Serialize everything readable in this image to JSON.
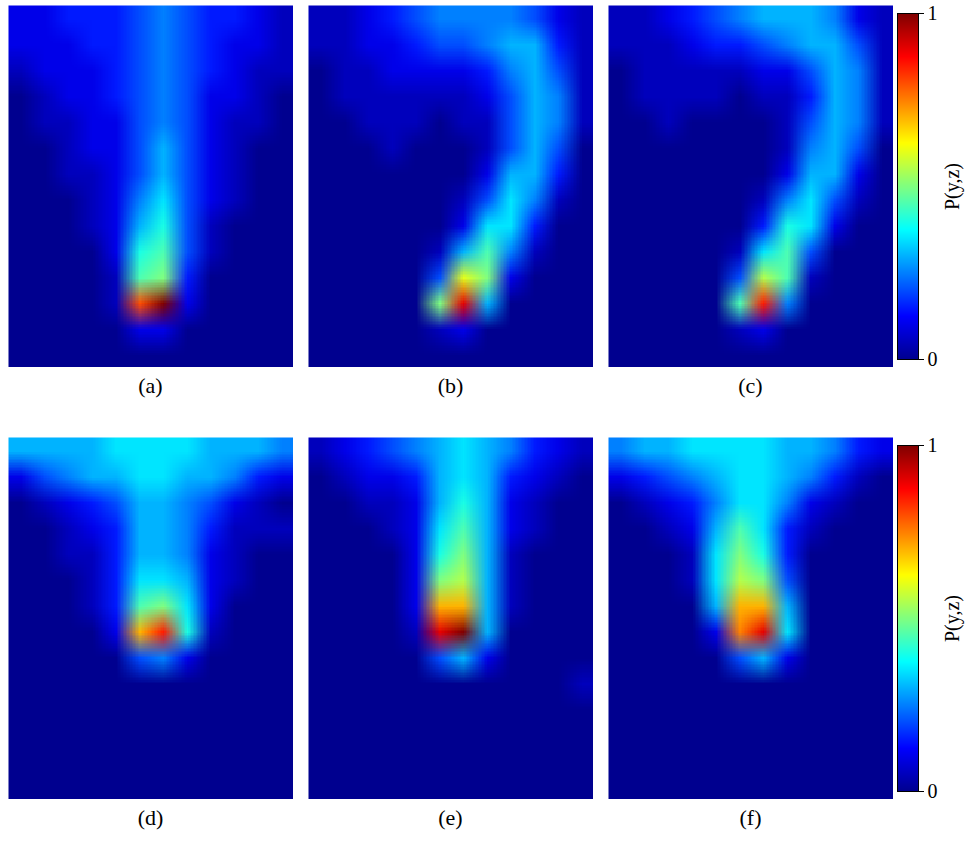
{
  "chart_data": [
    {
      "type": "heatmap",
      "title": "(a)",
      "tick_labels": false,
      "cells": [
        [
          0.1,
          0.1,
          0.15,
          0.15,
          0.15,
          0.2,
          0.25,
          0.2,
          0.15,
          0.15,
          0.1,
          0.05
        ],
        [
          0.1,
          0.1,
          0.1,
          0.15,
          0.15,
          0.2,
          0.25,
          0.2,
          0.15,
          0.1,
          0.1,
          0.05
        ],
        [
          0.05,
          0.1,
          0.1,
          0.1,
          0.15,
          0.2,
          0.25,
          0.2,
          0.15,
          0.1,
          0.05,
          0.05
        ],
        [
          0,
          0.05,
          0.1,
          0.1,
          0.15,
          0.2,
          0.25,
          0.2,
          0.1,
          0.1,
          0.05,
          0
        ],
        [
          0,
          0.05,
          0.05,
          0.1,
          0.1,
          0.2,
          0.25,
          0.2,
          0.1,
          0.05,
          0.05,
          0
        ],
        [
          0,
          0,
          0.05,
          0.1,
          0.1,
          0.2,
          0.3,
          0.2,
          0.1,
          0.05,
          0,
          0
        ],
        [
          0,
          0,
          0.05,
          0.05,
          0.1,
          0.2,
          0.3,
          0.2,
          0.1,
          0.05,
          0,
          0
        ],
        [
          0,
          0,
          0,
          0.05,
          0.1,
          0.25,
          0.35,
          0.2,
          0.1,
          0.05,
          0,
          0
        ],
        [
          0,
          0,
          0,
          0.05,
          0.1,
          0.3,
          0.4,
          0.2,
          0.05,
          0,
          0,
          0
        ],
        [
          0,
          0,
          0,
          0,
          0.1,
          0.4,
          0.45,
          0.2,
          0.05,
          0,
          0,
          0
        ],
        [
          0,
          0,
          0,
          0,
          0.05,
          0.45,
          0.5,
          0.15,
          0,
          0,
          0,
          0
        ],
        [
          0,
          0,
          0,
          0,
          0.05,
          0.8,
          1,
          0.1,
          0,
          0,
          0,
          0
        ],
        [
          0,
          0,
          0,
          0,
          0,
          0.1,
          0.1,
          0,
          0,
          0,
          0,
          0
        ],
        [
          0,
          0,
          0,
          0,
          0,
          0,
          0,
          0,
          0,
          0,
          0,
          0
        ]
      ]
    },
    {
      "type": "heatmap",
      "title": "(b)",
      "tick_labels": false,
      "cells": [
        [
          0.05,
          0.05,
          0.1,
          0.15,
          0.2,
          0.25,
          0.25,
          0.25,
          0.25,
          0.2,
          0.1,
          0.05
        ],
        [
          0.05,
          0.05,
          0.1,
          0.1,
          0.15,
          0.2,
          0.2,
          0.25,
          0.3,
          0.3,
          0.15,
          0.05
        ],
        [
          0,
          0.05,
          0.05,
          0.1,
          0.1,
          0.1,
          0.1,
          0.15,
          0.25,
          0.3,
          0.2,
          0.05
        ],
        [
          0,
          0.05,
          0.05,
          0.05,
          0.05,
          0.05,
          0.05,
          0.1,
          0.2,
          0.3,
          0.25,
          0.05
        ],
        [
          0,
          0,
          0.05,
          0.05,
          0.05,
          0,
          0.05,
          0.05,
          0.2,
          0.3,
          0.25,
          0.05
        ],
        [
          0,
          0,
          0,
          0.05,
          0,
          0,
          0,
          0.05,
          0.2,
          0.3,
          0.2,
          0
        ],
        [
          0,
          0,
          0,
          0,
          0,
          0,
          0,
          0.1,
          0.3,
          0.3,
          0.15,
          0
        ],
        [
          0,
          0,
          0,
          0,
          0,
          0,
          0.05,
          0.2,
          0.35,
          0.25,
          0.05,
          0
        ],
        [
          0,
          0,
          0,
          0,
          0,
          0,
          0.1,
          0.35,
          0.35,
          0.15,
          0,
          0
        ],
        [
          0,
          0,
          0,
          0,
          0,
          0.05,
          0.3,
          0.45,
          0.25,
          0.05,
          0,
          0
        ],
        [
          0,
          0,
          0,
          0,
          0,
          0.2,
          0.6,
          0.5,
          0.1,
          0,
          0,
          0
        ],
        [
          0,
          0,
          0,
          0,
          0,
          0.5,
          0.9,
          0.3,
          0,
          0,
          0,
          0
        ],
        [
          0,
          0,
          0,
          0,
          0,
          0.05,
          0.1,
          0,
          0,
          0,
          0,
          0
        ],
        [
          0,
          0,
          0,
          0,
          0,
          0,
          0,
          0,
          0,
          0,
          0,
          0
        ]
      ]
    },
    {
      "type": "heatmap",
      "title": "(c)",
      "tick_labels": false,
      "cells": [
        [
          0.05,
          0.05,
          0.1,
          0.15,
          0.2,
          0.25,
          0.3,
          0.3,
          0.3,
          0.25,
          0.1,
          0.05
        ],
        [
          0.05,
          0.05,
          0.05,
          0.1,
          0.15,
          0.15,
          0.2,
          0.25,
          0.3,
          0.3,
          0.2,
          0.05
        ],
        [
          0,
          0.05,
          0.05,
          0.05,
          0.05,
          0.05,
          0.1,
          0.1,
          0.2,
          0.3,
          0.25,
          0.05
        ],
        [
          0,
          0.05,
          0.05,
          0.05,
          0.05,
          0,
          0.05,
          0.05,
          0.15,
          0.3,
          0.25,
          0.05
        ],
        [
          0,
          0,
          0.05,
          0,
          0,
          0,
          0,
          0.05,
          0.2,
          0.3,
          0.25,
          0.05
        ],
        [
          0,
          0,
          0,
          0,
          0,
          0,
          0,
          0.05,
          0.25,
          0.3,
          0.2,
          0
        ],
        [
          0,
          0,
          0,
          0,
          0,
          0,
          0,
          0.1,
          0.3,
          0.3,
          0.1,
          0
        ],
        [
          0,
          0,
          0,
          0,
          0,
          0,
          0.05,
          0.25,
          0.35,
          0.2,
          0.05,
          0
        ],
        [
          0,
          0,
          0,
          0,
          0,
          0,
          0.15,
          0.4,
          0.35,
          0.1,
          0,
          0
        ],
        [
          0,
          0,
          0,
          0,
          0,
          0.05,
          0.35,
          0.45,
          0.2,
          0,
          0,
          0
        ],
        [
          0,
          0,
          0,
          0,
          0,
          0.2,
          0.55,
          0.45,
          0.05,
          0,
          0,
          0
        ],
        [
          0,
          0,
          0,
          0,
          0,
          0.45,
          0.85,
          0.25,
          0,
          0,
          0,
          0
        ],
        [
          0,
          0,
          0,
          0,
          0,
          0.05,
          0.1,
          0,
          0,
          0,
          0,
          0
        ],
        [
          0,
          0,
          0,
          0,
          0,
          0,
          0,
          0,
          0,
          0,
          0,
          0
        ]
      ],
      "colorbar": {
        "range": [
          0,
          1
        ],
        "ticks": [
          0,
          1
        ],
        "label": "P(y,z)"
      }
    },
    {
      "type": "heatmap",
      "title": "(d)",
      "tick_labels": false,
      "cells": [
        [
          0.3,
          0.3,
          0.3,
          0.3,
          0.35,
          0.35,
          0.35,
          0.35,
          0.3,
          0.3,
          0.3,
          0.25
        ],
        [
          0.1,
          0.2,
          0.25,
          0.3,
          0.3,
          0.35,
          0.35,
          0.3,
          0.3,
          0.25,
          0.15,
          0.1
        ],
        [
          0,
          0.05,
          0.1,
          0.15,
          0.2,
          0.3,
          0.3,
          0.25,
          0.2,
          0.1,
          0.05,
          0
        ],
        [
          0,
          0,
          0.05,
          0.1,
          0.15,
          0.3,
          0.3,
          0.25,
          0.15,
          0.05,
          0.05,
          0.05
        ],
        [
          0,
          0,
          0.05,
          0.05,
          0.15,
          0.3,
          0.3,
          0.25,
          0.1,
          0.05,
          0,
          0
        ],
        [
          0,
          0,
          0,
          0.05,
          0.15,
          0.35,
          0.35,
          0.3,
          0.1,
          0.05,
          0,
          0
        ],
        [
          0,
          0,
          0,
          0.05,
          0.15,
          0.45,
          0.5,
          0.35,
          0.1,
          0,
          0,
          0
        ],
        [
          0,
          0,
          0,
          0,
          0.1,
          0.7,
          0.85,
          0.4,
          0.05,
          0,
          0,
          0
        ],
        [
          0,
          0,
          0,
          0,
          0,
          0.2,
          0.25,
          0.1,
          0,
          0,
          0,
          0
        ],
        [
          0,
          0,
          0,
          0,
          0,
          0,
          0,
          0,
          0,
          0,
          0,
          0
        ],
        [
          0,
          0,
          0,
          0,
          0,
          0,
          0,
          0,
          0,
          0,
          0,
          0
        ],
        [
          0,
          0,
          0,
          0,
          0,
          0,
          0,
          0,
          0,
          0,
          0,
          0
        ],
        [
          0,
          0,
          0,
          0,
          0,
          0,
          0,
          0,
          0,
          0,
          0,
          0
        ],
        [
          0,
          0,
          0,
          0,
          0,
          0,
          0,
          0,
          0,
          0,
          0,
          0
        ]
      ]
    },
    {
      "type": "heatmap",
      "title": "(e)",
      "tick_labels": false,
      "cells": [
        [
          0.05,
          0.1,
          0.15,
          0.2,
          0.25,
          0.3,
          0.35,
          0.3,
          0.25,
          0.15,
          0.1,
          0.05
        ],
        [
          0,
          0.05,
          0.1,
          0.1,
          0.15,
          0.3,
          0.35,
          0.3,
          0.15,
          0.1,
          0.05,
          0
        ],
        [
          0,
          0,
          0.05,
          0.05,
          0.1,
          0.3,
          0.4,
          0.3,
          0.1,
          0.05,
          0,
          0
        ],
        [
          0,
          0,
          0,
          0.05,
          0.1,
          0.35,
          0.45,
          0.3,
          0.1,
          0.05,
          0,
          0
        ],
        [
          0,
          0,
          0,
          0,
          0.1,
          0.4,
          0.5,
          0.3,
          0.05,
          0,
          0,
          0
        ],
        [
          0,
          0,
          0,
          0,
          0.1,
          0.5,
          0.55,
          0.3,
          0.05,
          0,
          0,
          0
        ],
        [
          0,
          0,
          0,
          0,
          0.1,
          0.7,
          0.7,
          0.3,
          0.05,
          0,
          0,
          0
        ],
        [
          0,
          0,
          0,
          0,
          0.05,
          0.9,
          1,
          0.3,
          0,
          0,
          0,
          0
        ],
        [
          0,
          0,
          0,
          0,
          0,
          0.2,
          0.3,
          0.1,
          0,
          0,
          0,
          0
        ],
        [
          0,
          0,
          0,
          0,
          0,
          0,
          0,
          0,
          0,
          0,
          0,
          0.05
        ],
        [
          0,
          0,
          0,
          0,
          0,
          0,
          0,
          0,
          0,
          0,
          0,
          0
        ],
        [
          0,
          0,
          0,
          0,
          0,
          0,
          0,
          0,
          0,
          0,
          0,
          0
        ],
        [
          0,
          0,
          0,
          0,
          0,
          0,
          0,
          0,
          0,
          0,
          0,
          0
        ],
        [
          0,
          0,
          0,
          0,
          0,
          0,
          0,
          0,
          0,
          0,
          0,
          0
        ]
      ]
    },
    {
      "type": "heatmap",
      "title": "(f)",
      "tick_labels": false,
      "cells": [
        [
          0.25,
          0.3,
          0.3,
          0.35,
          0.35,
          0.35,
          0.35,
          0.3,
          0.3,
          0.25,
          0.15,
          0.1
        ],
        [
          0.1,
          0.15,
          0.2,
          0.25,
          0.3,
          0.35,
          0.35,
          0.3,
          0.25,
          0.15,
          0.05,
          0
        ],
        [
          0,
          0.05,
          0.1,
          0.15,
          0.25,
          0.35,
          0.35,
          0.25,
          0.1,
          0.05,
          0,
          0
        ],
        [
          0,
          0,
          0.05,
          0.1,
          0.3,
          0.45,
          0.35,
          0.15,
          0.05,
          0,
          0,
          0
        ],
        [
          0,
          0,
          0,
          0.05,
          0.35,
          0.5,
          0.4,
          0.15,
          0,
          0,
          0,
          0
        ],
        [
          0,
          0,
          0,
          0.05,
          0.35,
          0.55,
          0.5,
          0.2,
          0,
          0,
          0,
          0
        ],
        [
          0,
          0,
          0,
          0,
          0.3,
          0.7,
          0.7,
          0.3,
          0,
          0,
          0,
          0
        ],
        [
          0,
          0,
          0,
          0,
          0.1,
          0.75,
          0.9,
          0.35,
          0,
          0,
          0,
          0
        ],
        [
          0,
          0,
          0,
          0,
          0,
          0.2,
          0.3,
          0.1,
          0,
          0,
          0,
          0
        ],
        [
          0,
          0,
          0,
          0,
          0,
          0,
          0,
          0,
          0,
          0,
          0,
          0
        ],
        [
          0,
          0,
          0,
          0,
          0,
          0,
          0,
          0,
          0,
          0,
          0,
          0
        ],
        [
          0,
          0,
          0,
          0,
          0,
          0,
          0,
          0,
          0,
          0,
          0,
          0
        ],
        [
          0,
          0,
          0,
          0,
          0,
          0,
          0,
          0,
          0,
          0,
          0,
          0
        ],
        [
          0,
          0,
          0,
          0,
          0,
          0,
          0,
          0,
          0,
          0,
          0,
          0
        ]
      ],
      "colorbar": {
        "range": [
          0,
          1
        ],
        "ticks": [
          0,
          1
        ],
        "label": "P(y,z)"
      }
    }
  ]
}
